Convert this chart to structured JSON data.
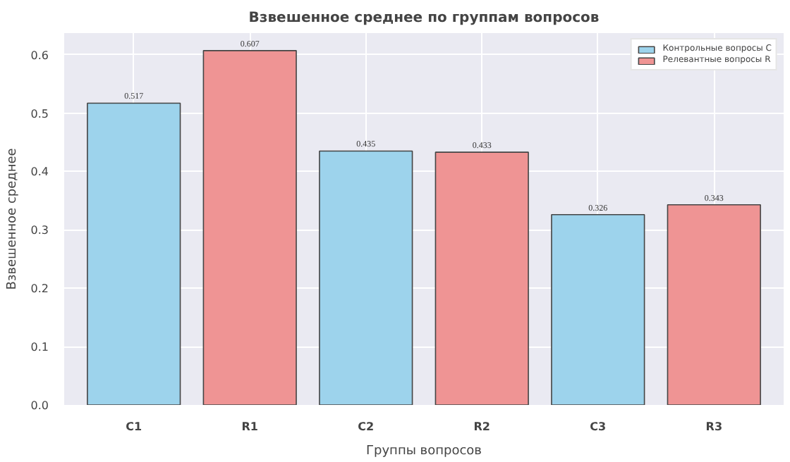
{
  "chart_data": {
    "type": "bar",
    "title": "Взвешенное среднее по группам вопросов",
    "xlabel": "Группы вопросов",
    "ylabel": "Взвешенное среднее",
    "categories": [
      "C1",
      "R1",
      "C2",
      "R2",
      "C3",
      "R3"
    ],
    "series": [
      {
        "name": "Контрольные вопросы C",
        "color": "#9dd3ec",
        "values": [
          0.517,
          null,
          0.435,
          null,
          0.326,
          null
        ]
      },
      {
        "name": "Релевантные вопросы R",
        "color": "#ef9494",
        "values": [
          null,
          0.607,
          null,
          0.433,
          null,
          0.343
        ]
      }
    ],
    "ylim": [
      0,
      0.637
    ],
    "yticks": [
      {
        "value": 0,
        "label": "0.0"
      },
      0.1,
      0.2,
      0.3,
      0.4,
      0.5,
      0.6
    ],
    "grid": true,
    "legend": "top right",
    "data_labels": true
  }
}
